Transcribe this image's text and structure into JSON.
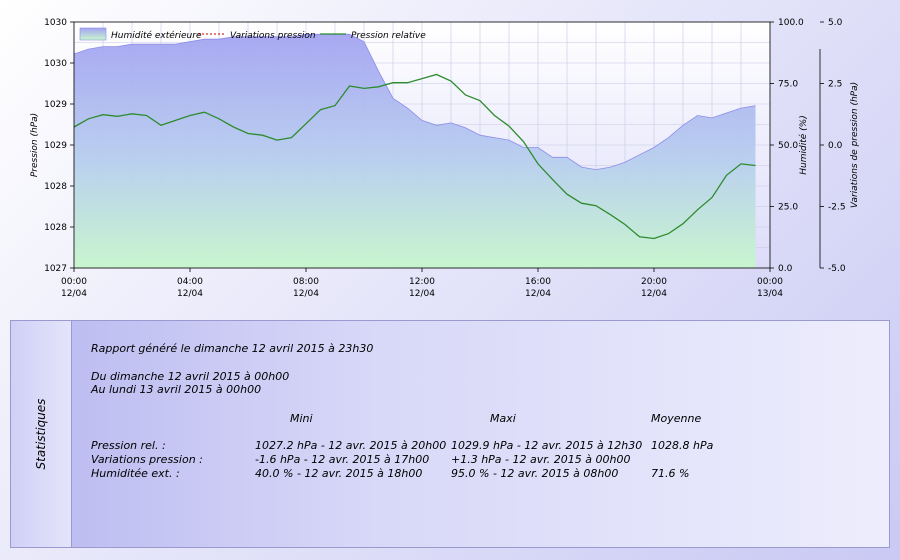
{
  "chart_data": {
    "type": "area",
    "legend": {
      "placement": "top",
      "items": [
        "Humidité extérieure",
        "Variations pression",
        "Pression relative"
      ]
    },
    "x_ticks": [
      {
        "time": "00:00",
        "date": "12/04"
      },
      {
        "time": "04:00",
        "date": "12/04"
      },
      {
        "time": "08:00",
        "date": "12/04"
      },
      {
        "time": "12:00",
        "date": "12/04"
      },
      {
        "time": "16:00",
        "date": "12/04"
      },
      {
        "time": "20:00",
        "date": "12/04"
      },
      {
        "time": "00:00",
        "date": "13/04"
      }
    ],
    "xlim_hours": [
      0,
      24
    ],
    "y_left": {
      "label": "Pression (hPa)",
      "ylim": [
        1027.2,
        1030.2
      ],
      "ticks": [
        {
          "v": 1027.2,
          "t": "1027"
        },
        {
          "v": 1027.7,
          "t": "1028"
        },
        {
          "v": 1028.2,
          "t": "1028"
        },
        {
          "v": 1028.7,
          "t": "1029"
        },
        {
          "v": 1029.2,
          "t": "1029"
        },
        {
          "v": 1029.7,
          "t": "1030"
        },
        {
          "v": 1030.2,
          "t": "1030"
        }
      ]
    },
    "y_right1": {
      "label": "Humidité (%)",
      "ylim": [
        0,
        100
      ],
      "ticks": [
        "0.0",
        "25.0",
        "50.0",
        "75.0",
        "100.0"
      ]
    },
    "y_right2": {
      "label": "Variations de pression (hPa)",
      "ylim": [
        -5,
        5
      ],
      "ticks": [
        "-5.0",
        "-2.5",
        "0.0",
        "2.5",
        "5.0"
      ]
    },
    "grid": true,
    "series": [
      {
        "name": "Humidité extérieure",
        "axis": "humidity",
        "color": "#9b9bf0",
        "x": [
          0,
          0.5,
          1,
          1.5,
          2,
          2.5,
          3,
          3.5,
          4,
          4.5,
          5,
          5.5,
          6,
          6.5,
          7,
          7.5,
          8,
          8.5,
          9,
          9.5,
          10,
          10.5,
          11,
          11.5,
          12,
          12.5,
          13,
          13.5,
          14,
          14.5,
          15,
          15.5,
          16,
          16.5,
          17,
          17.5,
          18,
          18.5,
          19,
          19.5,
          20,
          20.5,
          21,
          21.5,
          22,
          22.5,
          23,
          23.5
        ],
        "values": [
          87,
          89,
          90,
          90,
          91,
          91,
          91,
          91,
          92,
          93,
          93,
          94,
          94,
          94,
          94,
          94,
          95,
          95,
          95,
          95,
          92,
          80,
          69,
          65,
          60,
          58,
          59,
          57,
          54,
          53,
          52,
          49,
          49,
          45,
          45,
          41,
          40,
          41,
          43,
          46,
          49,
          53,
          58,
          62,
          61,
          63,
          65,
          66
        ]
      },
      {
        "name": "Pression relative",
        "axis": "pressure",
        "color": "#2e8b2e",
        "x": [
          0,
          0.5,
          1,
          1.5,
          2,
          2.5,
          3,
          3.5,
          4,
          4.5,
          5,
          5.5,
          6,
          6.5,
          7,
          7.5,
          8,
          8.5,
          9,
          9.5,
          10,
          10.5,
          11,
          11.5,
          12,
          12.5,
          13,
          13.5,
          14,
          14.5,
          15,
          15.5,
          16,
          16.5,
          17,
          17.5,
          18,
          18.5,
          19,
          19.5,
          20,
          20.5,
          21,
          21.5,
          22,
          22.5,
          23,
          23.5
        ],
        "values": [
          1028.92,
          1029.02,
          1029.07,
          1029.05,
          1029.08,
          1029.06,
          1028.94,
          1029.0,
          1029.06,
          1029.1,
          1029.02,
          1028.92,
          1028.84,
          1028.82,
          1028.76,
          1028.79,
          1028.96,
          1029.13,
          1029.18,
          1029.42,
          1029.39,
          1029.41,
          1029.46,
          1029.46,
          1029.51,
          1029.56,
          1029.48,
          1029.31,
          1029.24,
          1029.06,
          1028.93,
          1028.74,
          1028.47,
          1028.28,
          1028.1,
          1027.99,
          1027.96,
          1027.85,
          1027.73,
          1027.58,
          1027.56,
          1027.62,
          1027.74,
          1027.91,
          1028.06,
          1028.33,
          1028.47,
          1028.45
        ]
      },
      {
        "name": "Variations pression",
        "axis": "variation",
        "color": "#cc0000",
        "values": []
      }
    ]
  },
  "stats": {
    "side_title": "Statistiques",
    "report": "Rapport généré le dimanche 12 avril 2015 à 23h30",
    "from": "Du dimanche 12 avril 2015 à 00h00",
    "to": "Au lundi 13 avril 2015 à 00h00",
    "headers": {
      "min": "Mini",
      "max": "Maxi",
      "avg": "Moyenne"
    },
    "rows": [
      {
        "label": "Pression rel. :",
        "min": "1027.2 hPa - 12 avr. 2015 à 20h00",
        "max": "1029.9 hPa - 12 avr. 2015 à 12h30",
        "avg": "1028.8 hPa"
      },
      {
        "label": "Variations pression :",
        "min": "-1.6 hPa - 12 avr. 2015 à 17h00",
        "max": "+1.3 hPa - 12 avr. 2015 à 00h00",
        "avg": ""
      },
      {
        "label": "Humiditée ext. :",
        "min": "40.0 % - 12 avr. 2015 à 18h00",
        "max": "95.0 % - 12 avr. 2015 à 08h00",
        "avg": "71.6 %"
      }
    ]
  }
}
